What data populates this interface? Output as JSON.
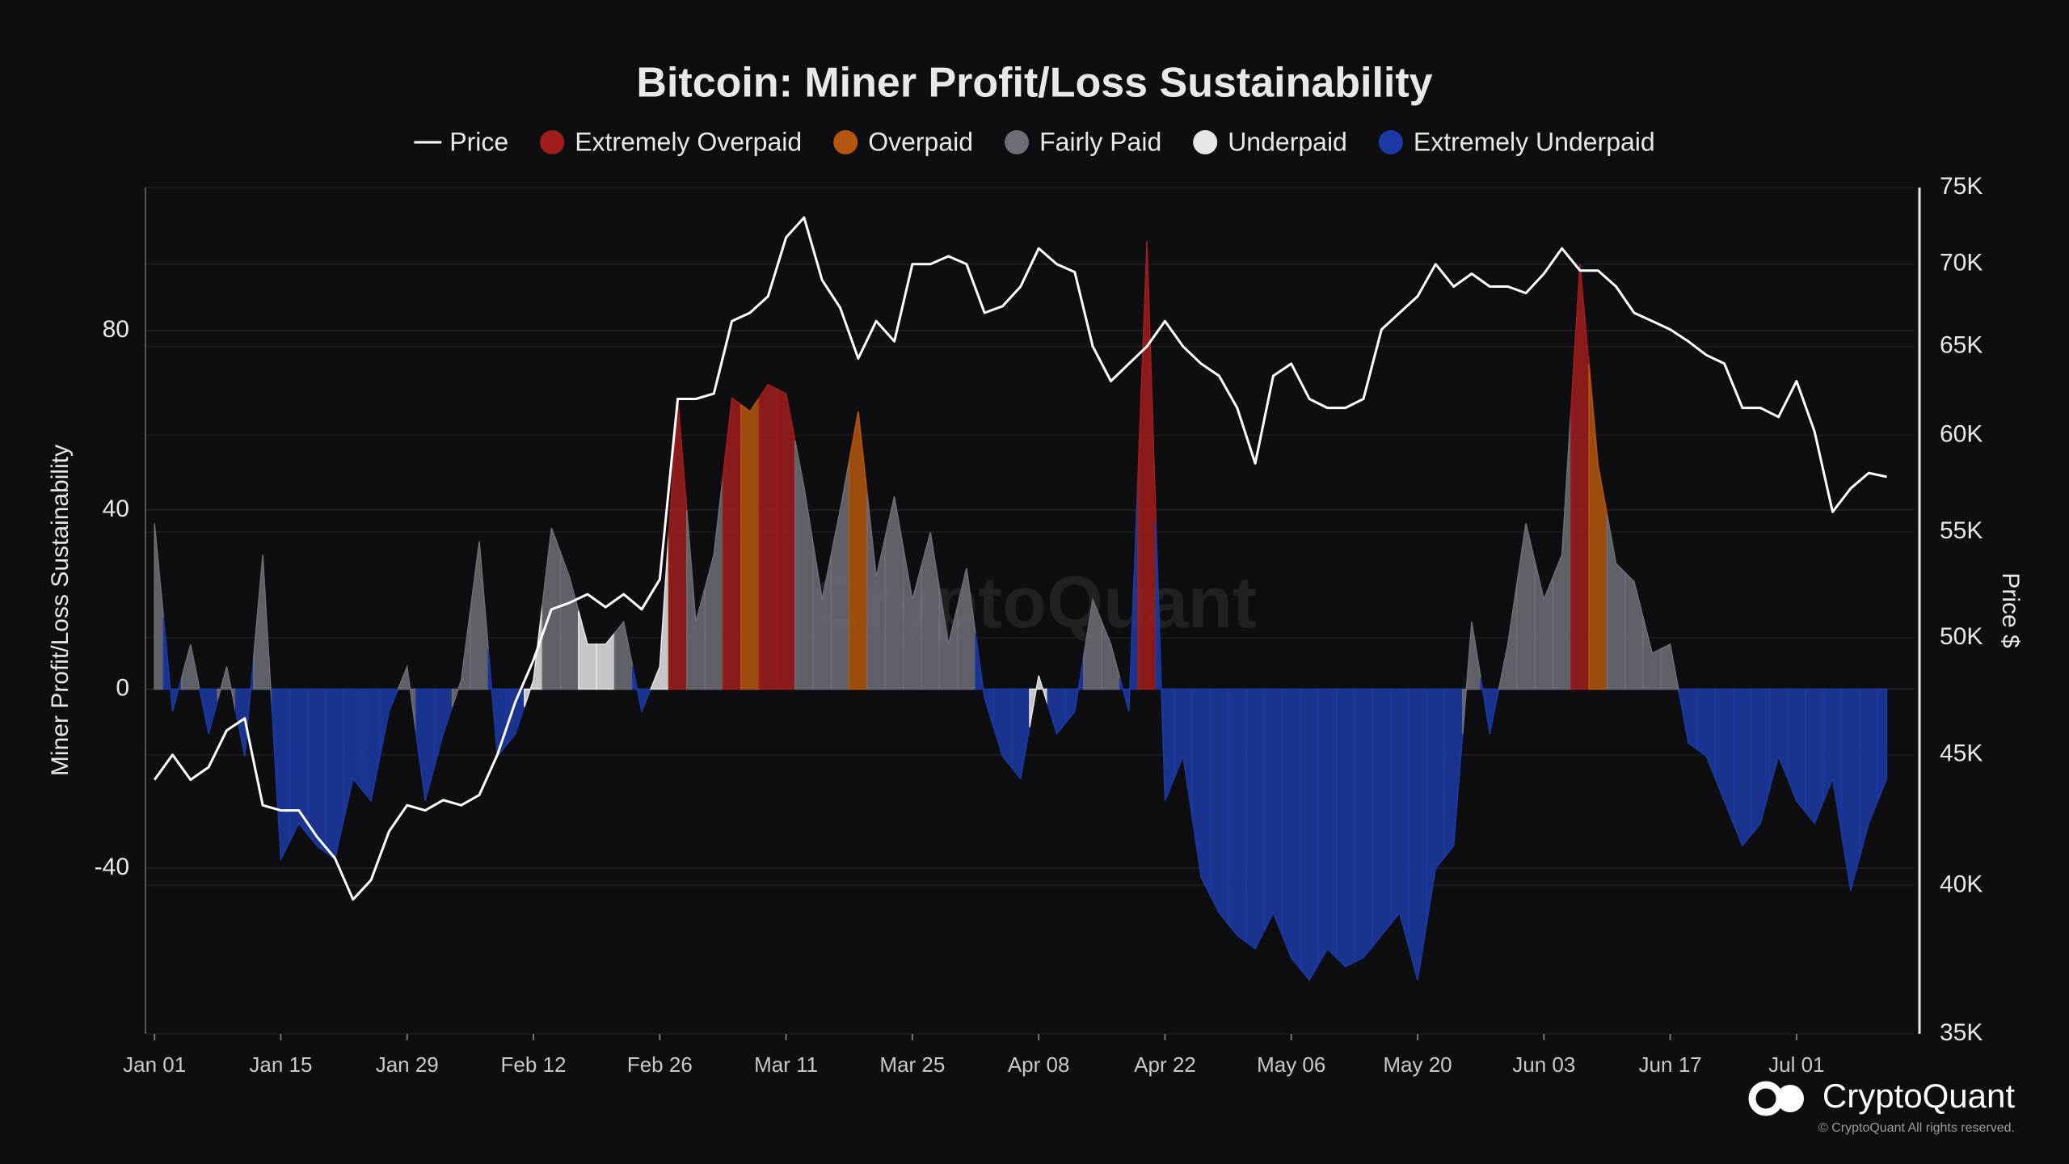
{
  "chart_data": {
    "type": "combo",
    "title": "Bitcoin: Miner Profit/Loss Sustainability",
    "y_label": "Miner Profit/Loss Sustainability",
    "y2_label": "Price $",
    "watermark": "CryptoQuant",
    "brand": "CryptoQuant",
    "copyright": "© CryptoQuant All rights reserved.",
    "grid": true,
    "y2scale": "log",
    "x": [
      0,
      2,
      4,
      6,
      8,
      10,
      12,
      14,
      16,
      18,
      20,
      22,
      24,
      26,
      28,
      30,
      32,
      34,
      36,
      38,
      40,
      42,
      44,
      46,
      48,
      50,
      52,
      54,
      56,
      58,
      60,
      62,
      64,
      66,
      68,
      70,
      72,
      74,
      76,
      78,
      80,
      82,
      84,
      86,
      88,
      90,
      92,
      94,
      96,
      98,
      100,
      102,
      104,
      106,
      108,
      110,
      112,
      114,
      116,
      118,
      120,
      122,
      124,
      126,
      128,
      130,
      132,
      134,
      136,
      138,
      140,
      142,
      144,
      146,
      148,
      150,
      152,
      154,
      156,
      158,
      160,
      162,
      164,
      166,
      168,
      170,
      172,
      174,
      176,
      178,
      180,
      182,
      184,
      186,
      188,
      190,
      192
    ],
    "xlim": [
      -1,
      195
    ],
    "xticks": [
      {
        "value": 0,
        "label": "Jan 01"
      },
      {
        "value": 14,
        "label": "Jan 15"
      },
      {
        "value": 28,
        "label": "Jan 29"
      },
      {
        "value": 42,
        "label": "Feb 12"
      },
      {
        "value": 56,
        "label": "Feb 26"
      },
      {
        "value": 70,
        "label": "Mar 11"
      },
      {
        "value": 84,
        "label": "Mar 25"
      },
      {
        "value": 98,
        "label": "Apr 08"
      },
      {
        "value": 112,
        "label": "Apr 22"
      },
      {
        "value": 126,
        "label": "May 06"
      },
      {
        "value": 140,
        "label": "May 20"
      },
      {
        "value": 154,
        "label": "Jun 03"
      },
      {
        "value": 168,
        "label": "Jun 17"
      },
      {
        "value": 182,
        "label": "Jul 01"
      }
    ],
    "ylim": [
      -77,
      112
    ],
    "yticks": [
      -40,
      0,
      40,
      80
    ],
    "y2lim": [
      35000,
      75000
    ],
    "y2ticks": [
      {
        "value": 35000,
        "label": "35K"
      },
      {
        "value": 40000,
        "label": "40K"
      },
      {
        "value": 45000,
        "label": "45K"
      },
      {
        "value": 50000,
        "label": "50K"
      },
      {
        "value": 55000,
        "label": "55K"
      },
      {
        "value": 60000,
        "label": "60K"
      },
      {
        "value": 65000,
        "label": "65K"
      },
      {
        "value": 70000,
        "label": "70K"
      },
      {
        "value": 75000,
        "label": "75K"
      }
    ],
    "series": [
      {
        "name": "Price",
        "type": "line",
        "axis": "y2",
        "color": "#ffffff",
        "values": [
          44000,
          45000,
          44000,
          44500,
          46000,
          46500,
          43000,
          42800,
          42800,
          41800,
          41000,
          39500,
          40200,
          42000,
          43000,
          42800,
          43200,
          43000,
          43400,
          45000,
          47200,
          49000,
          51300,
          51600,
          52000,
          51400,
          52000,
          51300,
          52700,
          62000,
          62000,
          62300,
          66500,
          67000,
          68000,
          71700,
          73000,
          69000,
          67300,
          64300,
          66500,
          65300,
          70000,
          70000,
          70500,
          70000,
          67000,
          67400,
          68600,
          71000,
          70000,
          69500,
          65000,
          63000,
          64000,
          65000,
          66500,
          65000,
          64000,
          63300,
          61500,
          58500,
          63300,
          64000,
          62000,
          61500,
          61500,
          62000,
          66000,
          67000,
          68000,
          70000,
          68600,
          69400,
          68600,
          68600,
          68200,
          69400,
          71000,
          69600,
          69600,
          68600,
          67000,
          66500,
          66000,
          65300,
          64500,
          64000,
          61500,
          61500,
          61000,
          63000,
          60200,
          56000,
          57200,
          58000,
          57800
        ]
      },
      {
        "name": "Extremely Overpaid",
        "type": "area",
        "color": "#a11d1d",
        "values": [
          null,
          null,
          null,
          null,
          null,
          null,
          null,
          null,
          null,
          null,
          null,
          null,
          null,
          null,
          null,
          null,
          null,
          null,
          null,
          null,
          null,
          null,
          null,
          null,
          null,
          null,
          null,
          null,
          null,
          65,
          null,
          null,
          65,
          null,
          68,
          66,
          null,
          null,
          null,
          null,
          null,
          null,
          null,
          null,
          null,
          null,
          null,
          null,
          null,
          null,
          null,
          null,
          null,
          null,
          null,
          100,
          null,
          null,
          null,
          null,
          null,
          null,
          null,
          null,
          null,
          null,
          null,
          null,
          null,
          null,
          null,
          null,
          null,
          null,
          null,
          null,
          null,
          null,
          null,
          95,
          null,
          null,
          null,
          null,
          null,
          null,
          null,
          null,
          null,
          null,
          null,
          null,
          null,
          null,
          null,
          null,
          null
        ]
      },
      {
        "name": "Overpaid",
        "type": "area",
        "color": "#b5560f",
        "values": [
          null,
          null,
          null,
          null,
          null,
          null,
          null,
          null,
          null,
          null,
          null,
          null,
          null,
          null,
          null,
          null,
          null,
          null,
          null,
          null,
          null,
          null,
          null,
          null,
          null,
          null,
          null,
          null,
          null,
          null,
          null,
          null,
          null,
          62,
          null,
          null,
          null,
          null,
          null,
          62,
          null,
          null,
          null,
          null,
          null,
          null,
          null,
          null,
          null,
          null,
          null,
          null,
          null,
          null,
          null,
          null,
          null,
          null,
          null,
          null,
          null,
          null,
          null,
          null,
          null,
          null,
          null,
          null,
          null,
          null,
          null,
          null,
          null,
          null,
          null,
          null,
          null,
          null,
          null,
          null,
          50,
          null,
          null,
          null,
          null,
          null,
          null,
          null,
          null,
          null,
          null,
          null,
          null,
          null,
          null,
          null,
          null
        ]
      },
      {
        "name": "Fairly Paid",
        "type": "area",
        "color": "#6e6e78",
        "values": [
          37,
          null,
          10,
          null,
          5,
          null,
          30,
          null,
          null,
          null,
          null,
          null,
          null,
          null,
          5,
          null,
          null,
          2,
          33,
          null,
          null,
          null,
          36,
          25,
          null,
          null,
          15,
          null,
          null,
          null,
          15,
          30,
          null,
          null,
          null,
          null,
          45,
          20,
          40,
          null,
          25,
          43,
          20,
          35,
          10,
          27,
          null,
          null,
          null,
          null,
          null,
          null,
          20,
          10,
          null,
          null,
          null,
          null,
          null,
          null,
          null,
          null,
          null,
          null,
          null,
          null,
          null,
          null,
          null,
          null,
          null,
          null,
          null,
          15,
          null,
          10,
          37,
          20,
          30,
          null,
          null,
          28,
          24,
          8,
          10,
          null,
          null,
          null,
          null,
          null,
          null,
          null,
          null,
          null,
          null,
          null,
          null
        ]
      },
      {
        "name": "Underpaid",
        "type": "area",
        "color": "#e6e6e6",
        "values": [
          null,
          null,
          null,
          null,
          null,
          null,
          null,
          null,
          null,
          null,
          null,
          null,
          null,
          null,
          null,
          null,
          null,
          null,
          null,
          null,
          null,
          2,
          null,
          null,
          10,
          10,
          null,
          null,
          5,
          null,
          null,
          null,
          null,
          null,
          null,
          null,
          null,
          null,
          null,
          null,
          null,
          null,
          null,
          null,
          null,
          null,
          null,
          null,
          null,
          3,
          null,
          null,
          null,
          null,
          null,
          null,
          null,
          null,
          null,
          null,
          null,
          null,
          null,
          null,
          null,
          null,
          null,
          null,
          null,
          null,
          null,
          null,
          null,
          null,
          null,
          null,
          null,
          null,
          null,
          null,
          null,
          null,
          null,
          null,
          null,
          null,
          null,
          null,
          null,
          null,
          null,
          null,
          null,
          null,
          null,
          null,
          null
        ]
      },
      {
        "name": "Extremely Underpaid",
        "type": "area",
        "color": "#1b3aa6",
        "values": [
          null,
          -5,
          null,
          -10,
          null,
          -15,
          null,
          -38,
          -30,
          -35,
          -38,
          -20,
          -25,
          -5,
          null,
          -25,
          -10,
          null,
          null,
          -15,
          -10,
          null,
          null,
          null,
          null,
          null,
          null,
          -5,
          null,
          null,
          null,
          null,
          null,
          null,
          null,
          null,
          null,
          null,
          null,
          null,
          null,
          null,
          null,
          null,
          null,
          null,
          -2,
          -15,
          -20,
          null,
          -10,
          -5,
          null,
          null,
          -5,
          null,
          -25,
          -15,
          -42,
          -50,
          -55,
          -58,
          -50,
          -60,
          -65,
          -58,
          -62,
          -60,
          -55,
          -50,
          -65,
          -40,
          -35,
          null,
          -10,
          null,
          null,
          null,
          null,
          null,
          null,
          null,
          null,
          null,
          null,
          -12,
          -15,
          -25,
          -35,
          -30,
          -15,
          -25,
          -30,
          -20,
          -45,
          -30,
          -20
        ]
      }
    ]
  }
}
